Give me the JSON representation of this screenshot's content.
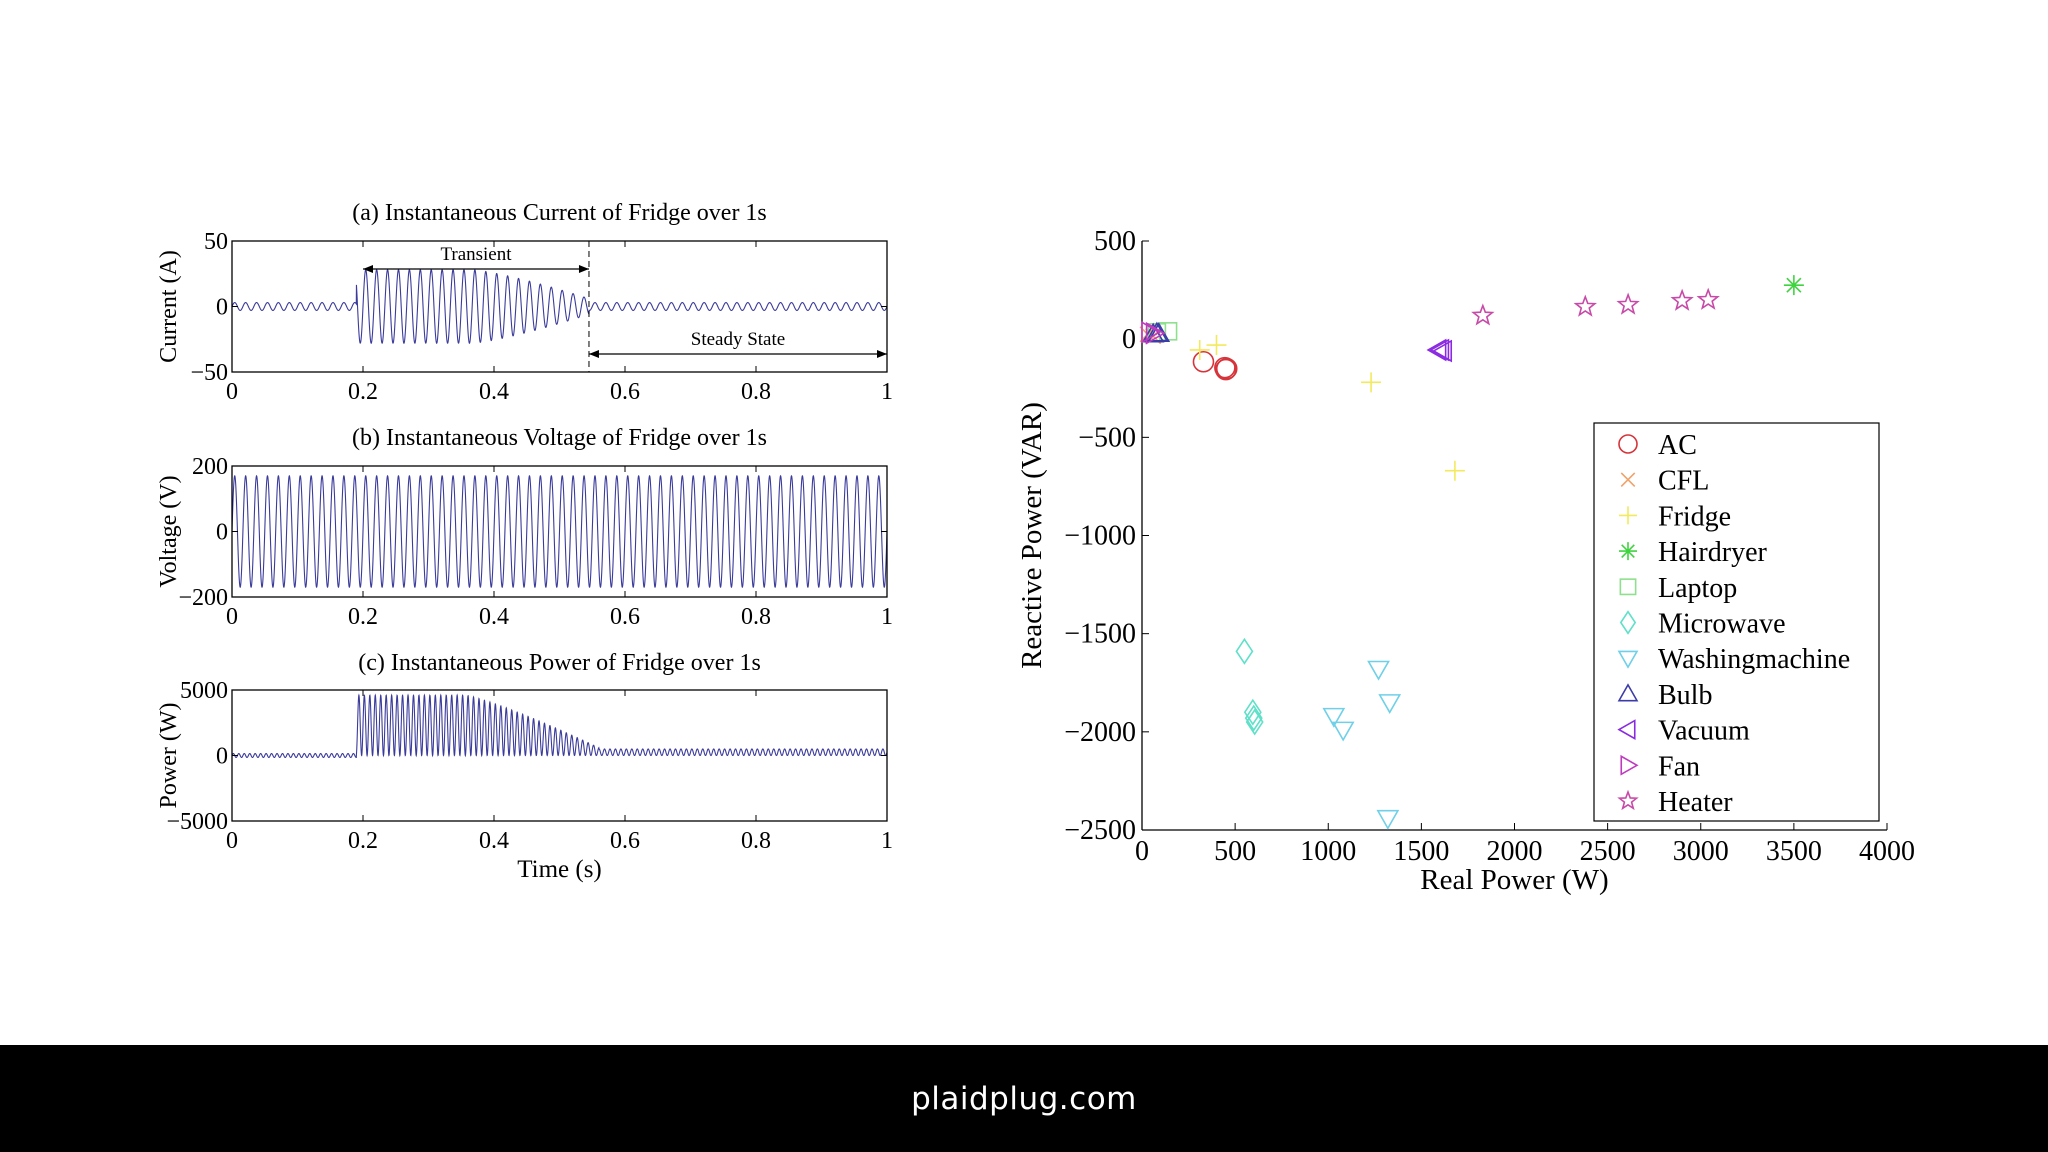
{
  "footer": {
    "site": "plaidplug.com"
  },
  "colors": {
    "wave": "#3b3b9c",
    "AC": "#d6343a",
    "CFL": "#f0a26a",
    "Fridge": "#f2ea5c",
    "Hairdryer": "#3fd43f",
    "Laptop": "#8ee08e",
    "Microwave": "#5fe0c8",
    "Washingmachine": "#6fd0e8",
    "Bulb": "#3c3ca8",
    "Vacuum": "#8a2be2",
    "Fan": "#c03ac0",
    "Heater": "#c84aa8"
  },
  "chart_data": [
    {
      "type": "line",
      "id": "current",
      "title": "(a) Instantaneous Current of Fridge over 1s",
      "xlabel": "",
      "ylabel": "Current (A)",
      "xlim": [
        0,
        1
      ],
      "ylim": [
        -50,
        50
      ],
      "xticks": [
        "0",
        "0.2",
        "0.4",
        "0.6",
        "0.8",
        "1"
      ],
      "yticks": [
        "50",
        "0",
        "−50"
      ],
      "signal": {
        "frequency_hz": 60,
        "steady_amplitude": 3,
        "transient_start": 0.19,
        "transient_end": 0.545,
        "transient_peak": 28,
        "transient_end_amplitude": 6
      },
      "annotations": {
        "transient": "Transient",
        "steady": "Steady State"
      }
    },
    {
      "type": "line",
      "id": "voltage",
      "title": "(b) Instantaneous Voltage of Fridge over 1s",
      "xlabel": "",
      "ylabel": "Voltage (V)",
      "xlim": [
        0,
        1
      ],
      "ylim": [
        -200,
        200
      ],
      "xticks": [
        "0",
        "0.2",
        "0.4",
        "0.6",
        "0.8",
        "1"
      ],
      "yticks": [
        "200",
        "0",
        "−200"
      ],
      "signal": {
        "frequency_hz": 60,
        "amplitude": 170
      }
    },
    {
      "type": "line",
      "id": "power",
      "title": "(c) Instantaneous Power of  Fridge over 1s",
      "xlabel": "Time (s)",
      "ylabel": "Power (W)",
      "xlim": [
        0,
        1
      ],
      "ylim": [
        -5000,
        5000
      ],
      "xticks": [
        "0",
        "0.2",
        "0.4",
        "0.6",
        "0.8",
        "1"
      ],
      "yticks": [
        "5000",
        "0",
        "−5000"
      ],
      "signal": {
        "frequency_hz": 120,
        "steady_level": 250,
        "steady_ripple": 250,
        "transient_start": 0.19,
        "transient_end": 0.56,
        "transient_peak": 4600
      }
    },
    {
      "type": "scatter",
      "id": "pq",
      "title": "",
      "xlabel": "Real Power (W)",
      "ylabel": "Reactive Power (VAR)",
      "xlim": [
        0,
        4000
      ],
      "ylim": [
        -2500,
        500
      ],
      "xticks": [
        "0",
        "500",
        "1000",
        "1500",
        "2000",
        "2500",
        "3000",
        "3500",
        "4000"
      ],
      "yticks": [
        "500",
        "0",
        "−500",
        "−1000",
        "−1500",
        "−2000",
        "−2500"
      ],
      "legend_position": "lower-right",
      "series": [
        {
          "name": "AC",
          "marker": "circle",
          "points": [
            [
              330,
              -115
            ],
            [
              445,
              -145
            ],
            [
              450,
              -155
            ],
            [
              455,
              -150
            ]
          ]
        },
        {
          "name": "CFL",
          "marker": "x",
          "points": [
            [
              30,
              25
            ],
            [
              60,
              15
            ]
          ]
        },
        {
          "name": "Fridge",
          "marker": "plus",
          "points": [
            [
              310,
              -55
            ],
            [
              400,
              -30
            ],
            [
              1230,
              -220
            ],
            [
              1680,
              -670
            ]
          ]
        },
        {
          "name": "Hairdryer",
          "marker": "asterisk",
          "points": [
            [
              3500,
              275
            ]
          ]
        },
        {
          "name": "Laptop",
          "marker": "square",
          "points": [
            [
              80,
              35
            ],
            [
              140,
              40
            ]
          ]
        },
        {
          "name": "Microwave",
          "marker": "diamond",
          "points": [
            [
              550,
              -1590
            ],
            [
              595,
              -1900
            ],
            [
              600,
              -1930
            ],
            [
              605,
              -1950
            ]
          ]
        },
        {
          "name": "Washingmachine",
          "marker": "triangle-down",
          "points": [
            [
              1030,
              -1920
            ],
            [
              1080,
              -1990
            ],
            [
              1270,
              -1680
            ],
            [
              1330,
              -1850
            ],
            [
              1320,
              -2440
            ]
          ]
        },
        {
          "name": "Bulb",
          "marker": "triangle-up",
          "points": [
            [
              60,
              25
            ],
            [
              80,
              30
            ],
            [
              90,
              28
            ]
          ]
        },
        {
          "name": "Vacuum",
          "marker": "triangle-left",
          "points": [
            [
              1590,
              -55
            ],
            [
              1605,
              -55
            ],
            [
              1620,
              -60
            ]
          ]
        },
        {
          "name": "Fan",
          "marker": "triangle-right",
          "points": [
            [
              40,
              35
            ],
            [
              65,
              30
            ]
          ]
        },
        {
          "name": "Heater",
          "marker": "star",
          "points": [
            [
              1830,
              120
            ],
            [
              2380,
              165
            ],
            [
              2610,
              175
            ],
            [
              2900,
              195
            ],
            [
              3040,
              200
            ]
          ]
        }
      ]
    }
  ]
}
